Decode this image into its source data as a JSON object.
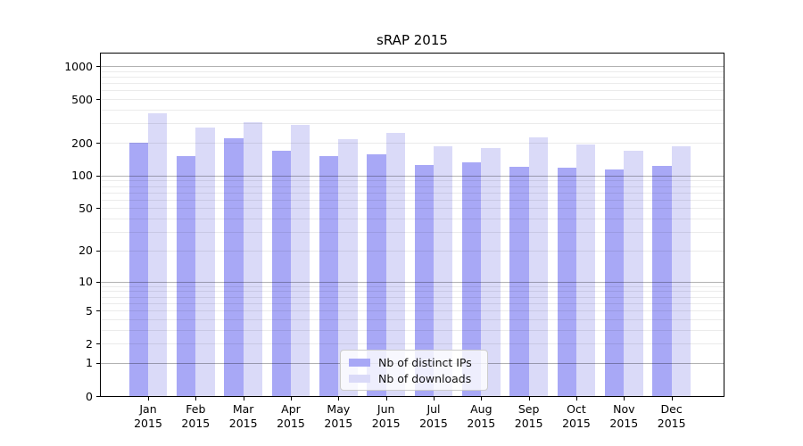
{
  "title": "sRAP 2015",
  "chart_data": {
    "type": "bar",
    "title": "sRAP 2015",
    "y_scale": "log1p",
    "ylim": [
      0,
      1325
    ],
    "y_ticks": [
      0,
      1,
      2,
      5,
      10,
      20,
      50,
      100,
      200,
      500,
      1000
    ],
    "grid": {
      "on": true,
      "major_values": [
        1,
        10,
        100,
        1000
      ],
      "minor": true
    },
    "categories": [
      "Jan",
      "Feb",
      "Mar",
      "Apr",
      "May",
      "Jun",
      "Jul",
      "Aug",
      "Sep",
      "Oct",
      "Nov",
      "Dec"
    ],
    "x_tick_second_line": "2015",
    "series": [
      {
        "name": "Nb of distinct IPs",
        "color": "#a8a8f6",
        "values": [
          200,
          152,
          220,
          170,
          150,
          158,
          126,
          133,
          120,
          119,
          114,
          123
        ]
      },
      {
        "name": "Nb of downloads",
        "color": "#dadaf8",
        "values": [
          372,
          275,
          310,
          290,
          214,
          245,
          186,
          180,
          225,
          194,
          170,
          184
        ]
      }
    ],
    "legend": {
      "position": "lower-center",
      "items": [
        "Nb of distinct IPs",
        "Nb of downloads"
      ]
    }
  }
}
